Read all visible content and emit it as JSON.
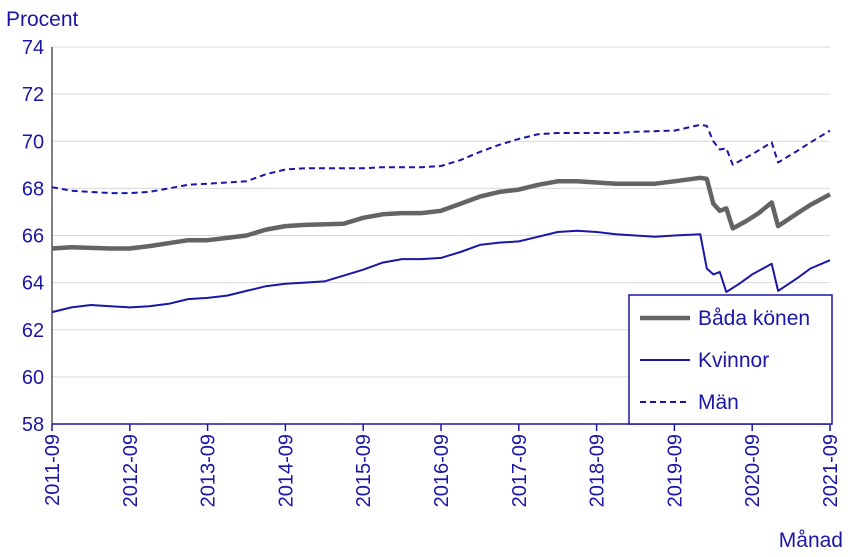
{
  "chart_data": {
    "type": "line",
    "title": "",
    "ylabel": "Procent",
    "xlabel": "Månad",
    "ylim": [
      58,
      74
    ],
    "yticks": [
      58,
      60,
      62,
      64,
      66,
      68,
      70,
      72,
      74
    ],
    "xlim": [
      "2011-09",
      "2021-09"
    ],
    "xticks": [
      "2011-09",
      "2012-09",
      "2013-09",
      "2014-09",
      "2015-09",
      "2016-09",
      "2017-09",
      "2018-09",
      "2019-09",
      "2020-09",
      "2021-09"
    ],
    "grid": "horizontal",
    "legend_position": "bottom-right",
    "series": [
      {
        "name": "Båda könen",
        "color": "#646464",
        "style": "solid-thick",
        "points": [
          [
            "2011-09",
            65.45
          ],
          [
            "2011-12",
            65.5
          ],
          [
            "2012-06",
            65.45
          ],
          [
            "2012-09",
            65.45
          ],
          [
            "2012-12",
            65.55
          ],
          [
            "2013-06",
            65.8
          ],
          [
            "2013-09",
            65.8
          ],
          [
            "2013-12",
            65.9
          ],
          [
            "2014-03",
            66.0
          ],
          [
            "2014-06",
            66.25
          ],
          [
            "2014-09",
            66.4
          ],
          [
            "2014-12",
            66.45
          ],
          [
            "2015-06",
            66.5
          ],
          [
            "2015-09",
            66.75
          ],
          [
            "2015-12",
            66.9
          ],
          [
            "2016-03",
            66.95
          ],
          [
            "2016-06",
            66.95
          ],
          [
            "2016-09",
            67.05
          ],
          [
            "2016-12",
            67.35
          ],
          [
            "2017-03",
            67.65
          ],
          [
            "2017-06",
            67.85
          ],
          [
            "2017-09",
            67.95
          ],
          [
            "2017-12",
            68.15
          ],
          [
            "2018-03",
            68.3
          ],
          [
            "2018-06",
            68.3
          ],
          [
            "2018-09",
            68.25
          ],
          [
            "2018-12",
            68.2
          ],
          [
            "2019-06",
            68.2
          ],
          [
            "2019-09",
            68.3
          ],
          [
            "2020-01",
            68.45
          ],
          [
            "2020-02",
            68.4
          ],
          [
            "2020-03",
            67.35
          ],
          [
            "2020-04",
            67.05
          ],
          [
            "2020-05",
            67.15
          ],
          [
            "2020-06",
            66.3
          ],
          [
            "2020-08",
            66.6
          ],
          [
            "2020-10",
            66.95
          ],
          [
            "2020-12",
            67.4
          ],
          [
            "2021-01",
            66.4
          ],
          [
            "2021-04",
            66.95
          ],
          [
            "2021-06",
            67.3
          ],
          [
            "2021-09",
            67.75
          ]
        ]
      },
      {
        "name": "Kvinnor",
        "color": "#1a17a6",
        "style": "solid",
        "points": [
          [
            "2011-09",
            62.75
          ],
          [
            "2011-12",
            62.95
          ],
          [
            "2012-03",
            63.05
          ],
          [
            "2012-06",
            63.0
          ],
          [
            "2012-09",
            62.95
          ],
          [
            "2012-12",
            63.0
          ],
          [
            "2013-03",
            63.1
          ],
          [
            "2013-06",
            63.3
          ],
          [
            "2013-09",
            63.35
          ],
          [
            "2013-12",
            63.45
          ],
          [
            "2014-03",
            63.65
          ],
          [
            "2014-06",
            63.85
          ],
          [
            "2014-09",
            63.95
          ],
          [
            "2014-12",
            64.0
          ],
          [
            "2015-03",
            64.05
          ],
          [
            "2015-06",
            64.3
          ],
          [
            "2015-09",
            64.55
          ],
          [
            "2015-12",
            64.85
          ],
          [
            "2016-03",
            65.0
          ],
          [
            "2016-06",
            65.0
          ],
          [
            "2016-09",
            65.05
          ],
          [
            "2016-12",
            65.3
          ],
          [
            "2017-03",
            65.6
          ],
          [
            "2017-06",
            65.7
          ],
          [
            "2017-09",
            65.75
          ],
          [
            "2017-12",
            65.95
          ],
          [
            "2018-03",
            66.15
          ],
          [
            "2018-06",
            66.2
          ],
          [
            "2018-09",
            66.15
          ],
          [
            "2018-12",
            66.05
          ],
          [
            "2019-03",
            66.0
          ],
          [
            "2019-06",
            65.95
          ],
          [
            "2019-09",
            66.0
          ],
          [
            "2020-01",
            66.05
          ],
          [
            "2020-02",
            64.6
          ],
          [
            "2020-03",
            64.35
          ],
          [
            "2020-04",
            64.45
          ],
          [
            "2020-05",
            63.6
          ],
          [
            "2020-07",
            63.95
          ],
          [
            "2020-09",
            64.35
          ],
          [
            "2020-12",
            64.8
          ],
          [
            "2021-01",
            63.65
          ],
          [
            "2021-04",
            64.2
          ],
          [
            "2021-06",
            64.6
          ],
          [
            "2021-09",
            64.95
          ]
        ]
      },
      {
        "name": "Män",
        "color": "#1a17a6",
        "style": "dashed",
        "points": [
          [
            "2011-09",
            68.05
          ],
          [
            "2011-12",
            67.9
          ],
          [
            "2012-06",
            67.8
          ],
          [
            "2012-09",
            67.8
          ],
          [
            "2012-12",
            67.85
          ],
          [
            "2013-03",
            68.0
          ],
          [
            "2013-06",
            68.15
          ],
          [
            "2013-09",
            68.2
          ],
          [
            "2014-03",
            68.3
          ],
          [
            "2014-06",
            68.6
          ],
          [
            "2014-09",
            68.8
          ],
          [
            "2014-12",
            68.85
          ],
          [
            "2015-06",
            68.85
          ],
          [
            "2015-09",
            68.85
          ],
          [
            "2015-12",
            68.9
          ],
          [
            "2016-06",
            68.9
          ],
          [
            "2016-09",
            68.95
          ],
          [
            "2016-12",
            69.2
          ],
          [
            "2017-03",
            69.55
          ],
          [
            "2017-06",
            69.85
          ],
          [
            "2017-09",
            70.1
          ],
          [
            "2017-12",
            70.3
          ],
          [
            "2018-03",
            70.35
          ],
          [
            "2018-09",
            70.35
          ],
          [
            "2018-12",
            70.35
          ],
          [
            "2019-03",
            70.4
          ],
          [
            "2019-09",
            70.45
          ],
          [
            "2020-01",
            70.7
          ],
          [
            "2020-02",
            70.65
          ],
          [
            "2020-03",
            70.0
          ],
          [
            "2020-04",
            69.65
          ],
          [
            "2020-05",
            69.7
          ],
          [
            "2020-06",
            69.0
          ],
          [
            "2020-09",
            69.45
          ],
          [
            "2020-12",
            69.95
          ],
          [
            "2021-01",
            69.1
          ],
          [
            "2021-04",
            69.6
          ],
          [
            "2021-06",
            69.95
          ],
          [
            "2021-09",
            70.45
          ]
        ]
      }
    ]
  }
}
